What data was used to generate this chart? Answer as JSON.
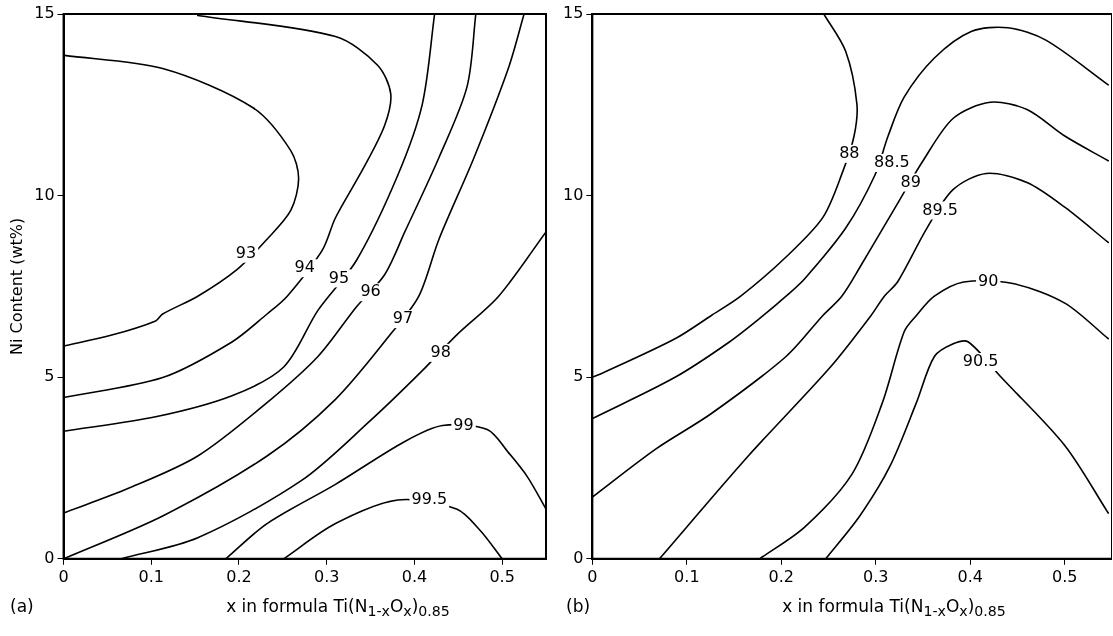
{
  "chart_data": [
    {
      "type": "line",
      "ylabel": "Ni Content (wt%)",
      "xlabel": "x in formula Ti(N$_{1-x}$O$_{x}$)$_{0.85}$",
      "marker": "none",
      "xlim": [
        0,
        0.55
      ],
      "xticks": [
        0,
        0.1,
        0.2,
        0.3,
        0.4,
        0.5
      ],
      "ylim": [
        0,
        15
      ],
      "yticks": [
        0,
        5,
        10,
        15
      ],
      "series": [
        {
          "color": "#000000",
          "x": [
            0,
            0.055,
            0.105,
            0.113,
            0.153,
            0.198,
            0.232,
            0.259,
            0.268,
            0.259,
            0.216,
            0.113,
            0.001
          ],
          "values": [
            5.86,
            6.16,
            6.55,
            6.74,
            7.23,
            7.97,
            8.8,
            9.59,
            10.47,
            11.24,
            12.42,
            13.5,
            13.86
          ]
        },
        {
          "color": "#000000",
          "x": [
            0,
            0.113,
            0.192,
            0.232,
            0.255,
            0.295,
            0.31,
            0.342,
            0.366,
            0.373,
            0.358,
            0.31,
            0.153
          ],
          "values": [
            4.44,
            4.99,
            5.97,
            6.74,
            7.23,
            8.5,
            9.39,
            10.76,
            11.93,
            12.8,
            13.59,
            14.38,
            14.96
          ]
        },
        {
          "color": "#000000",
          "x": [
            0,
            0.105,
            0.192,
            0.251,
            0.29,
            0.334,
            0.381,
            0.409,
            0.423
          ],
          "values": [
            3.51,
            3.91,
            4.49,
            5.28,
            6.84,
            8.22,
            10.56,
            12.52,
            15
          ]
        },
        {
          "color": "#000000",
          "x": [
            0,
            0.074,
            0.153,
            0.232,
            0.29,
            0.334,
            0.366,
            0.389,
            0.428,
            0.46,
            0.47
          ],
          "values": [
            1.26,
            1.94,
            2.83,
            4.3,
            5.57,
            6.94,
            7.82,
            9.0,
            11.05,
            13.0,
            15
          ]
        },
        {
          "color": "#000000",
          "x": [
            0,
            0.113,
            0.232,
            0.31,
            0.375,
            0.405,
            0.428,
            0.468,
            0.507,
            0.525
          ],
          "values": [
            0,
            1.18,
            2.83,
            4.39,
            6.25,
            7.23,
            8.8,
            11.05,
            13.5,
            15
          ]
        },
        {
          "color": "#000000",
          "x": [
            0.066,
            0.153,
            0.271,
            0.35,
            0.409,
            0.448,
            0.496,
            0.55
          ],
          "values": [
            0,
            0.58,
            2.15,
            3.81,
            5.18,
            6.16,
            7.23,
            9.0
          ]
        },
        {
          "color": "#000000",
          "x": [
            0.185,
            0.232,
            0.31,
            0.389,
            0.432,
            0.483,
            0.507,
            0.529,
            0.55
          ],
          "values": [
            0,
            0.97,
            2.05,
            3.23,
            3.67,
            3.56,
            2.93,
            2.25,
            1.37
          ]
        },
        {
          "color": "#000000",
          "x": [
            0.251,
            0.31,
            0.381,
            0.448,
            0.475,
            0.5
          ],
          "values": [
            0,
            0.97,
            1.62,
            1.37,
            0.78,
            0
          ]
        }
      ],
      "annotations": [
        "(a)",
        {
          "text": "93",
          "x": 0.208,
          "y": 8.4
        },
        {
          "text": "94",
          "x": 0.275,
          "y": 8.0
        },
        {
          "text": "95",
          "x": 0.314,
          "y": 7.72
        },
        {
          "text": "96",
          "x": 0.35,
          "y": 7.34
        },
        {
          "text": "97",
          "x": 0.387,
          "y": 6.6
        },
        {
          "text": "98",
          "x": 0.43,
          "y": 5.67
        },
        {
          "text": "99",
          "x": 0.456,
          "y": 3.67
        },
        {
          "text": "99.5",
          "x": 0.417,
          "y": 1.62
        }
      ]
    },
    {
      "type": "line",
      "xlabel": "x in formula Ti(N$_{1-x}$O$_{x}$)$_{0.85}$",
      "marker": "none",
      "xlim": [
        0,
        0.55
      ],
      "xticks": [
        0,
        0.1,
        0.2,
        0.3,
        0.4,
        0.5
      ],
      "ylim": [
        0,
        15
      ],
      "yticks": [
        0,
        5,
        10,
        15
      ],
      "series": [
        {
          "color": "#000000",
          "x": [
            0,
            0.008,
            0.087,
            0.126,
            0.157,
            0.205,
            0.244,
            0.265,
            0.277,
            0.28,
            0.268,
            0.245
          ],
          "values": [
            5.0,
            5.08,
            6.05,
            6.7,
            7.23,
            8.31,
            9.4,
            10.66,
            11.64,
            12.52,
            13.98,
            15
          ]
        },
        {
          "color": "#000000",
          "x": [
            0,
            0.087,
            0.145,
            0.181,
            0.205,
            0.225,
            0.268,
            0.299,
            0.313,
            0.33,
            0.362,
            0.401,
            0.44,
            0.48,
            0.546
          ],
          "values": [
            3.86,
            4.99,
            5.97,
            6.7,
            7.23,
            7.72,
            9.1,
            10.56,
            11.64,
            12.71,
            13.79,
            14.52,
            14.62,
            14.28,
            13.05
          ]
        },
        {
          "color": "#000000",
          "x": [
            0,
            0.067,
            0.126,
            0.205,
            0.244,
            0.264,
            0.283,
            0.325,
            0.35,
            0.382,
            0.421,
            0.46,
            0.5,
            0.546
          ],
          "values": [
            1.7,
            3.02,
            4.0,
            5.57,
            6.7,
            7.23,
            8.02,
            9.87,
            10.96,
            12.13,
            12.57,
            12.37,
            11.64,
            10.96
          ]
        },
        {
          "color": "#000000",
          "x": [
            0.071,
            0.165,
            0.252,
            0.295,
            0.309,
            0.323,
            0.354,
            0.382,
            0.417,
            0.46,
            0.5,
            0.546
          ],
          "values": [
            0,
            2.83,
            5.28,
            6.7,
            7.23,
            7.62,
            9.1,
            10.17,
            10.61,
            10.36,
            9.68,
            8.71
          ]
        },
        {
          "color": "#000000",
          "x": [
            0.177,
            0.225,
            0.275,
            0.307,
            0.33,
            0.343,
            0.362,
            0.393,
            0.445,
            0.5,
            0.546
          ],
          "values": [
            0,
            0.88,
            2.34,
            4.3,
            6.25,
            6.7,
            7.23,
            7.62,
            7.58,
            7.04,
            6.06
          ]
        },
        {
          "color": "#000000",
          "x": [
            0.247,
            0.283,
            0.315,
            0.343,
            0.362,
            0.382,
            0.398,
            0.433,
            0.5,
            0.546
          ],
          "values": [
            0,
            1.18,
            2.55,
            4.3,
            5.57,
            5.92,
            5.97,
            4.99,
            3.12,
            1.26
          ]
        }
      ],
      "annotations": [
        "(b)",
        {
          "text": "88",
          "x": 0.272,
          "y": 11.15
        },
        {
          "text": "88.5",
          "x": 0.317,
          "y": 10.9
        },
        {
          "text": "89",
          "x": 0.337,
          "y": 10.36
        },
        {
          "text": "89.5",
          "x": 0.368,
          "y": 9.59
        },
        {
          "text": "90",
          "x": 0.419,
          "y": 7.62
        },
        {
          "text": "90.5",
          "x": 0.411,
          "y": 5.42
        }
      ]
    }
  ]
}
